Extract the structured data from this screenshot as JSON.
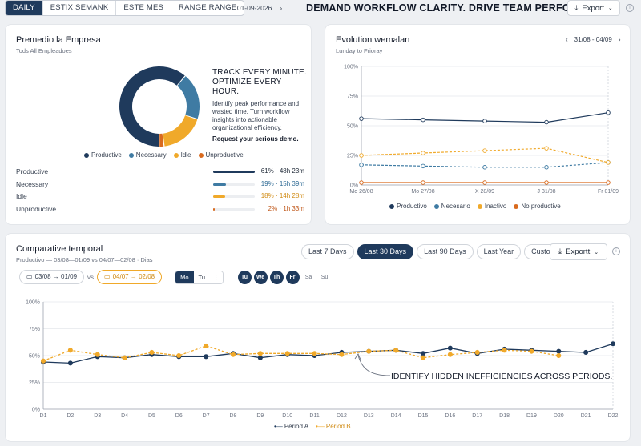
{
  "topbar": {
    "tabs": [
      "DAILY",
      "ESTIX SEMANK",
      "ESTE MES",
      "RANGE RANGE"
    ],
    "active_tab": 0,
    "date": "01-09-2026",
    "banner": "DEMAND WORKFLOW CLARITY. DRIVE TEAM PERFORMANCE.",
    "export_label": "Export"
  },
  "premedio": {
    "title": "Premedio la Empresa",
    "subtitle": "Tods All Empleadoes",
    "promo_title_1": "TRACK EVERY MINUTE.",
    "promo_title_2": "OPTIMIZE EVERY HOUR.",
    "promo_body": "Identify peak performance and wasted time. Turn workflow insights into actionable organizational efficiency.",
    "promo_cta": "Request your serious demo.",
    "chart_data": {
      "type": "pie",
      "categories": [
        "Productive",
        "Necessary",
        "Idle",
        "Unproductive"
      ],
      "values": [
        61,
        19,
        18,
        2
      ],
      "colors": [
        "#1f3a5c",
        "#3f7ba3",
        "#f0a92a",
        "#d96a1e"
      ]
    },
    "legend": [
      "Productive",
      "Necessary",
      "Idle",
      "Unproductive"
    ],
    "rows": [
      {
        "label": "Productive",
        "pct": 61,
        "value": "61% · 48h 23m",
        "color": "#1f3a5c",
        "text_color": "#1f2937"
      },
      {
        "label": "Necessary",
        "pct": 19,
        "value": "19% · 15h 39m",
        "color": "#3f7ba3",
        "text_color": "#2f6b95"
      },
      {
        "label": "Idle",
        "pct": 18,
        "value": "18% · 14h 28m",
        "color": "#f0a92a",
        "text_color": "#d08a12"
      },
      {
        "label": "Unproductive",
        "pct": 2,
        "value": "2% · 1h 33m",
        "color": "#d96a1e",
        "text_color": "#c0581a"
      }
    ]
  },
  "evolution": {
    "title": "Evolution wemalan",
    "subtitle": "Lunday to Frioray",
    "range": "31/08 - 04/09",
    "chart_data": {
      "type": "line",
      "x": [
        "Mo 26/08",
        "Mo 27/08",
        "X 28/09",
        "J 31/08",
        "Fr 01/09"
      ],
      "yticks": [
        "100%",
        "75%",
        "50%",
        "25%",
        "0%"
      ],
      "ylim": [
        0,
        100
      ],
      "series": [
        {
          "name": "Productivo",
          "color": "#1f3a5c",
          "dashed": false,
          "values": [
            56,
            55,
            54,
            53,
            61
          ]
        },
        {
          "name": "Necesario",
          "color": "#3f7ba3",
          "dashed": true,
          "values": [
            17,
            16,
            15,
            15,
            19
          ]
        },
        {
          "name": "Inactivo",
          "color": "#f0a92a",
          "dashed": true,
          "values": [
            25,
            27,
            29,
            31,
            19
          ]
        },
        {
          "name": "No productive",
          "color": "#d96a1e",
          "dashed": false,
          "values": [
            2,
            2,
            2,
            2,
            2
          ]
        }
      ]
    }
  },
  "comparative": {
    "title": "Comparative temporal",
    "subtitle": "Productivo — 03/08—01/09 vs 04/07—02/08 · Dias",
    "periods": [
      "Last 7 Days",
      "Last 30 Days",
      "Last 90 Days",
      "Last Year",
      "Custom"
    ],
    "active_period": 1,
    "export_label": "Exportt",
    "range_a": "03/08 → 01/09",
    "vs": "vs",
    "range_b": "04/07 → 02/08",
    "mode_a": "Mo",
    "mode_b": "Tu",
    "days_on": [
      "Tu",
      "We",
      "Th",
      "Fr"
    ],
    "days_off": [
      "Sa",
      "Su"
    ],
    "annotation": "IDENTIFY HIDDEN INEFFICIENCIES ACROSS PERIODS.",
    "chart_data": {
      "type": "line",
      "x": [
        "D1",
        "D2",
        "D3",
        "D4",
        "D5",
        "D6",
        "D7",
        "D8",
        "D9",
        "D10",
        "D11",
        "D12",
        "D13",
        "D14",
        "D15",
        "D16",
        "D17",
        "D18",
        "D19",
        "D20",
        "D21",
        "D22"
      ],
      "yticks": [
        "100%",
        "75%",
        "50%",
        "25%",
        "0%"
      ],
      "ylim": [
        0,
        100
      ],
      "series": [
        {
          "name": "Period A",
          "color": "#1f3a5c",
          "dashed": false,
          "values": [
            44,
            43,
            49,
            48,
            51,
            49,
            49,
            52,
            48,
            51,
            50,
            53,
            54,
            55,
            52,
            57,
            52,
            56,
            55,
            54,
            53,
            61
          ]
        },
        {
          "name": "Period B",
          "color": "#f0a92a",
          "dashed": true,
          "values": [
            45,
            55,
            51,
            48,
            53,
            50,
            59,
            51,
            52,
            52,
            52,
            51,
            54,
            55,
            48,
            51,
            53,
            55,
            54,
            50,
            null,
            null
          ]
        }
      ]
    },
    "legend": [
      "Period A",
      "Period B"
    ]
  }
}
